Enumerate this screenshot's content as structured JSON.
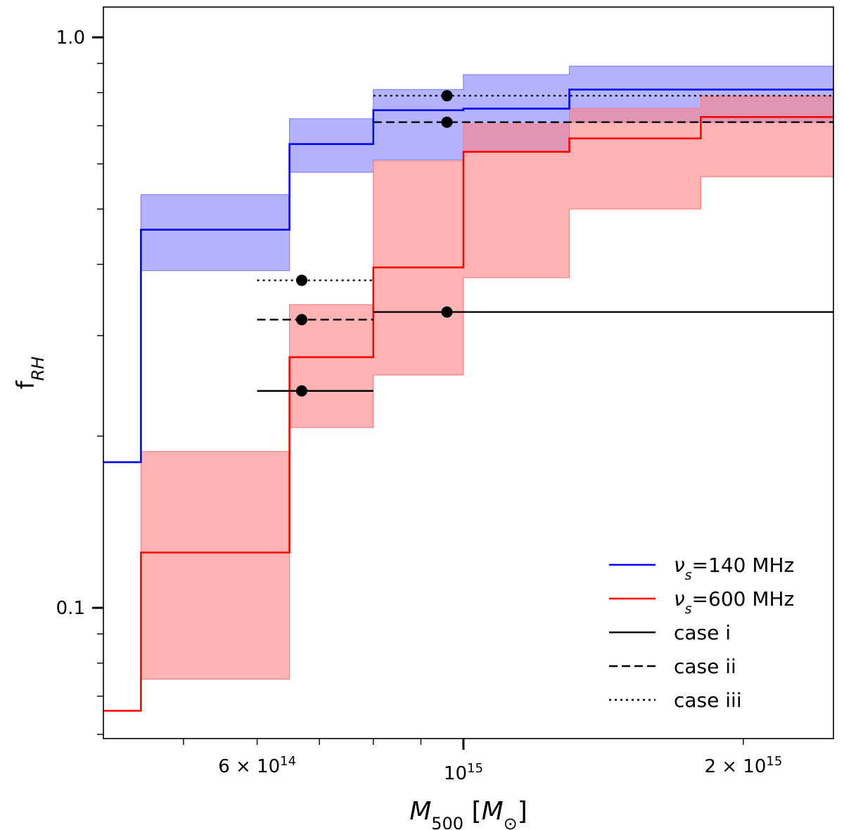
{
  "chart_data": {
    "type": "line",
    "xscale": "log",
    "yscale": "log",
    "xlim": [
      410000000000000,
      2500000000000000
    ],
    "ylim": [
      0.059,
      1.13
    ],
    "xlabel": "M_500 [M_⊙]",
    "ylabel": "f_RH",
    "x_ticks": [
      {
        "value": 600000000000000,
        "label_base": "6 × 10",
        "label_exp": "14"
      },
      {
        "value": 1000000000000000,
        "label_base": "10",
        "label_exp": "15"
      },
      {
        "value": 2000000000000000,
        "label_base": "2 × 10",
        "label_exp": "15"
      }
    ],
    "y_ticks": [
      {
        "value": 1.0,
        "label": "1.0"
      },
      {
        "value": 0.1,
        "label": "0.1"
      }
    ],
    "bin_edges": [
      410000000000000,
      450000000000000,
      650000000000000,
      800000000000000,
      1000000000000000,
      1300000000000000,
      1800000000000000,
      2500000000000000
    ],
    "series": [
      {
        "name": "ν_s=140 MHz",
        "legend_label": "=140 MHz",
        "color": "#0000ff",
        "fill": "#8080ff",
        "values": [
          0.18,
          0.46,
          0.65,
          0.745,
          0.75,
          0.81,
          0.81
        ],
        "lower": [
          null,
          0.39,
          0.58,
          0.61,
          0.63,
          0.71,
          0.71
        ],
        "upper": [
          null,
          0.53,
          0.72,
          0.81,
          0.86,
          0.89,
          0.89
        ]
      },
      {
        "name": "ν_s=600 MHz",
        "legend_label": "=600 MHz",
        "color": "#ff0000",
        "fill": "#ff8080",
        "values": [
          0.066,
          0.125,
          0.275,
          0.395,
          0.63,
          0.665,
          0.725
        ],
        "lower": [
          null,
          0.075,
          0.207,
          0.256,
          0.379,
          0.5,
          0.57
        ],
        "upper": [
          null,
          0.188,
          0.34,
          0.607,
          0.705,
          0.75,
          0.79
        ]
      }
    ],
    "points": [
      {
        "case": "case i",
        "style": "solid",
        "x": 670000000000000,
        "y": 0.24,
        "x_range": [
          600000000000000,
          800000000000000
        ]
      },
      {
        "case": "case ii",
        "style": "dashed",
        "x": 670000000000000,
        "y": 0.32,
        "x_range": [
          600000000000000,
          800000000000000
        ]
      },
      {
        "case": "case iii",
        "style": "dotted",
        "x": 670000000000000,
        "y": 0.375,
        "x_range": [
          600000000000000,
          800000000000000
        ]
      },
      {
        "case": "case i",
        "style": "solid",
        "x": 960000000000000,
        "y": 0.33,
        "x_range": [
          800000000000000,
          2500000000000000
        ]
      },
      {
        "case": "case ii",
        "style": "dashed",
        "x": 960000000000000,
        "y": 0.71,
        "x_range": [
          800000000000000,
          2500000000000000
        ]
      },
      {
        "case": "case iii",
        "style": "dotted",
        "x": 960000000000000,
        "y": 0.79,
        "x_range": [
          800000000000000,
          2500000000000000
        ]
      }
    ],
    "legend": {
      "position": "lower-right",
      "entries": [
        {
          "label": "=140 MHz",
          "symbol": "ν",
          "subscript": "s",
          "color": "#0000ff",
          "style": "solid"
        },
        {
          "label": "=600 MHz",
          "symbol": "ν",
          "subscript": "s",
          "color": "#ff0000",
          "style": "solid"
        },
        {
          "label": "case i",
          "color": "#000000",
          "style": "solid"
        },
        {
          "label": "case ii",
          "color": "#000000",
          "style": "dashed"
        },
        {
          "label": "case iii",
          "color": "#000000",
          "style": "dotted"
        }
      ]
    }
  }
}
